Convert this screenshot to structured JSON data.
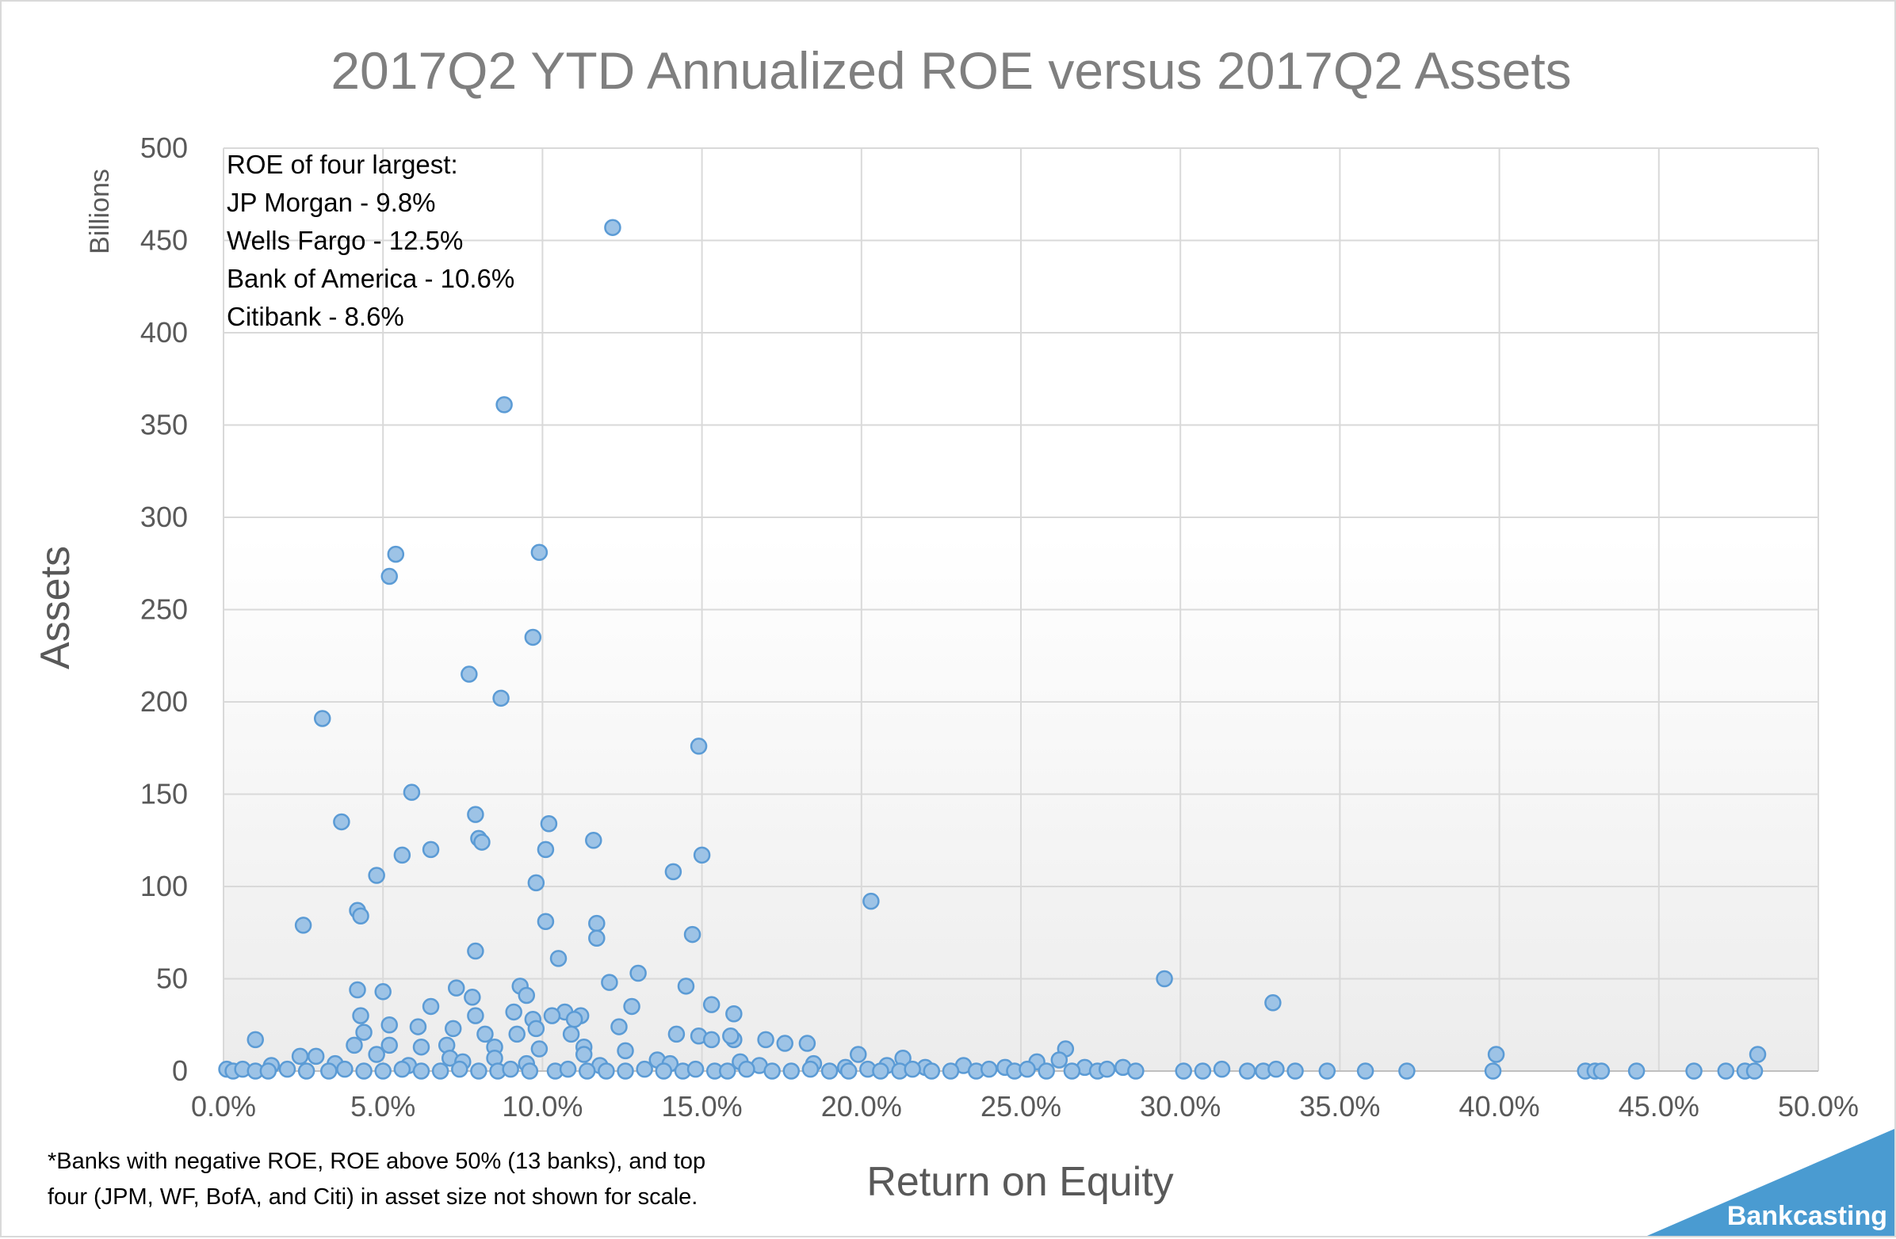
{
  "chart_data": {
    "type": "scatter",
    "title": "2017Q2 YTD Annualized ROE versus 2017Q2 Assets",
    "xlabel": "Return on Equity",
    "ylabel": "Assets",
    "y_units": "Billions",
    "xlim": [
      0,
      0.5
    ],
    "ylim": [
      0,
      500
    ],
    "x_ticks": [
      0,
      0.05,
      0.1,
      0.15,
      0.2,
      0.25,
      0.3,
      0.35,
      0.4,
      0.45,
      0.5
    ],
    "x_tick_labels": [
      "0.0%",
      "5.0%",
      "10.0%",
      "15.0%",
      "20.0%",
      "25.0%",
      "30.0%",
      "35.0%",
      "40.0%",
      "45.0%",
      "50.0%"
    ],
    "y_ticks": [
      0,
      50,
      100,
      150,
      200,
      250,
      300,
      350,
      400,
      450,
      500
    ],
    "y_tick_labels": [
      "0",
      "50",
      "100",
      "150",
      "200",
      "250",
      "300",
      "350",
      "400",
      "450",
      "500"
    ],
    "grid": true,
    "legend": "none",
    "marker_color": "#9dc3e6",
    "marker_edge_color": "#5b9bd5",
    "annotation_lines": [
      "ROE  of four largest:",
      "JP Morgan - 9.8%",
      "Wells Fargo - 12.5%",
      "Bank of America - 10.6%",
      "Citibank - 8.6%"
    ],
    "footnote_lines": [
      "*Banks with negative ROE, ROE above 50% (13 banks), and top",
      "four (JPM, WF, BofA, and Citi) in asset size not shown for scale."
    ],
    "brand": "Bankcasting",
    "brand_color": "#4a9bd1",
    "points": [
      [
        0.122,
        457
      ],
      [
        0.088,
        361
      ],
      [
        0.054,
        280
      ],
      [
        0.099,
        281
      ],
      [
        0.052,
        268
      ],
      [
        0.097,
        235
      ],
      [
        0.077,
        215
      ],
      [
        0.031,
        191
      ],
      [
        0.087,
        202
      ],
      [
        0.149,
        176
      ],
      [
        0.059,
        151
      ],
      [
        0.037,
        135
      ],
      [
        0.079,
        139
      ],
      [
        0.102,
        134
      ],
      [
        0.08,
        126
      ],
      [
        0.081,
        124
      ],
      [
        0.116,
        125
      ],
      [
        0.065,
        120
      ],
      [
        0.101,
        120
      ],
      [
        0.056,
        117
      ],
      [
        0.15,
        117
      ],
      [
        0.048,
        106
      ],
      [
        0.141,
        108
      ],
      [
        0.098,
        102
      ],
      [
        0.203,
        92
      ],
      [
        0.042,
        87
      ],
      [
        0.043,
        84
      ],
      [
        0.117,
        80
      ],
      [
        0.025,
        79
      ],
      [
        0.101,
        81
      ],
      [
        0.147,
        74
      ],
      [
        0.117,
        72
      ],
      [
        0.079,
        65
      ],
      [
        0.105,
        61
      ],
      [
        0.13,
        53
      ],
      [
        0.295,
        50
      ],
      [
        0.121,
        48
      ],
      [
        0.093,
        46
      ],
      [
        0.042,
        44
      ],
      [
        0.073,
        45
      ],
      [
        0.05,
        43
      ],
      [
        0.145,
        46
      ],
      [
        0.095,
        41
      ],
      [
        0.078,
        40
      ],
      [
        0.065,
        35
      ],
      [
        0.128,
        35
      ],
      [
        0.153,
        36
      ],
      [
        0.329,
        37
      ],
      [
        0.043,
        30
      ],
      [
        0.091,
        32
      ],
      [
        0.107,
        32
      ],
      [
        0.112,
        30
      ],
      [
        0.103,
        30
      ],
      [
        0.079,
        30
      ],
      [
        0.11,
        28
      ],
      [
        0.097,
        28
      ],
      [
        0.16,
        31
      ],
      [
        0.052,
        25
      ],
      [
        0.061,
        24
      ],
      [
        0.072,
        23
      ],
      [
        0.124,
        24
      ],
      [
        0.098,
        23
      ],
      [
        0.082,
        20
      ],
      [
        0.044,
        21
      ],
      [
        0.092,
        20
      ],
      [
        0.109,
        20
      ],
      [
        0.142,
        20
      ],
      [
        0.149,
        19
      ],
      [
        0.16,
        17
      ],
      [
        0.153,
        17
      ],
      [
        0.01,
        17
      ],
      [
        0.17,
        17
      ],
      [
        0.176,
        15
      ],
      [
        0.183,
        15
      ],
      [
        0.041,
        14
      ],
      [
        0.052,
        14
      ],
      [
        0.062,
        13
      ],
      [
        0.07,
        14
      ],
      [
        0.085,
        13
      ],
      [
        0.099,
        12
      ],
      [
        0.113,
        13
      ],
      [
        0.126,
        11
      ],
      [
        0.159,
        19
      ],
      [
        0.264,
        12
      ],
      [
        0.029,
        8
      ],
      [
        0.048,
        9
      ],
      [
        0.085,
        7
      ],
      [
        0.113,
        9
      ],
      [
        0.199,
        9
      ],
      [
        0.213,
        7
      ],
      [
        0.262,
        6
      ],
      [
        0.399,
        9
      ],
      [
        0.481,
        9
      ],
      [
        0.024,
        8
      ],
      [
        0.071,
        7
      ],
      [
        0.136,
        6
      ],
      [
        0.162,
        5
      ],
      [
        0.185,
        4
      ],
      [
        0.232,
        3
      ],
      [
        0.255,
        5
      ],
      [
        0.282,
        2
      ],
      [
        0.015,
        3
      ],
      [
        0.035,
        4
      ],
      [
        0.058,
        3
      ],
      [
        0.075,
        5
      ],
      [
        0.095,
        4
      ],
      [
        0.118,
        3
      ],
      [
        0.14,
        4
      ],
      [
        0.168,
        3
      ],
      [
        0.195,
        2
      ],
      [
        0.208,
        3
      ],
      [
        0.22,
        2
      ],
      [
        0.245,
        2
      ],
      [
        0.27,
        2
      ],
      [
        0.001,
        1
      ],
      [
        0.003,
        0
      ],
      [
        0.006,
        1
      ],
      [
        0.01,
        0
      ],
      [
        0.014,
        0
      ],
      [
        0.02,
        1
      ],
      [
        0.026,
        0
      ],
      [
        0.033,
        0
      ],
      [
        0.038,
        1
      ],
      [
        0.044,
        0
      ],
      [
        0.05,
        0
      ],
      [
        0.056,
        1
      ],
      [
        0.062,
        0
      ],
      [
        0.068,
        0
      ],
      [
        0.074,
        1
      ],
      [
        0.08,
        0
      ],
      [
        0.086,
        0
      ],
      [
        0.09,
        1
      ],
      [
        0.096,
        0
      ],
      [
        0.104,
        0
      ],
      [
        0.108,
        1
      ],
      [
        0.114,
        0
      ],
      [
        0.12,
        0
      ],
      [
        0.126,
        0
      ],
      [
        0.132,
        1
      ],
      [
        0.138,
        0
      ],
      [
        0.144,
        0
      ],
      [
        0.148,
        1
      ],
      [
        0.154,
        0
      ],
      [
        0.158,
        0
      ],
      [
        0.164,
        1
      ],
      [
        0.172,
        0
      ],
      [
        0.178,
        0
      ],
      [
        0.184,
        1
      ],
      [
        0.19,
        0
      ],
      [
        0.196,
        0
      ],
      [
        0.202,
        1
      ],
      [
        0.206,
        0
      ],
      [
        0.212,
        0
      ],
      [
        0.216,
        1
      ],
      [
        0.222,
        0
      ],
      [
        0.228,
        0
      ],
      [
        0.236,
        0
      ],
      [
        0.24,
        1
      ],
      [
        0.248,
        0
      ],
      [
        0.252,
        1
      ],
      [
        0.258,
        0
      ],
      [
        0.266,
        0
      ],
      [
        0.274,
        0
      ],
      [
        0.277,
        1
      ],
      [
        0.286,
        0
      ],
      [
        0.301,
        0
      ],
      [
        0.307,
        0
      ],
      [
        0.313,
        1
      ],
      [
        0.321,
        0
      ],
      [
        0.326,
        0
      ],
      [
        0.33,
        1
      ],
      [
        0.336,
        0
      ],
      [
        0.346,
        0
      ],
      [
        0.358,
        0
      ],
      [
        0.371,
        0
      ],
      [
        0.398,
        0
      ],
      [
        0.427,
        0
      ],
      [
        0.43,
        0
      ],
      [
        0.432,
        0
      ],
      [
        0.443,
        0
      ],
      [
        0.461,
        0
      ],
      [
        0.471,
        0
      ],
      [
        0.477,
        0
      ],
      [
        0.48,
        0
      ]
    ]
  }
}
